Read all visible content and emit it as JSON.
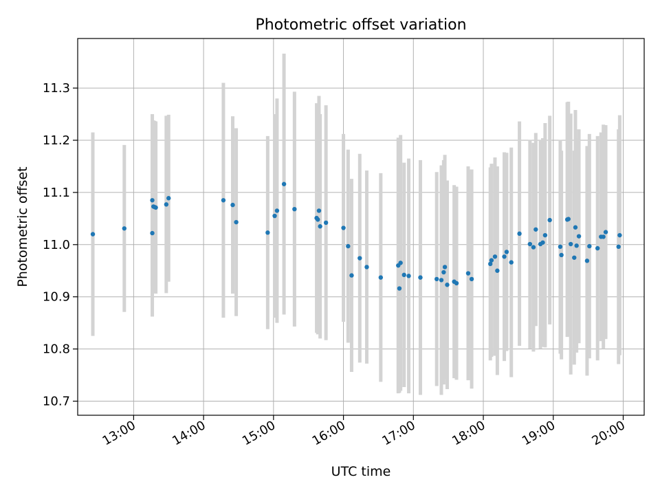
{
  "chart_data": {
    "type": "scatter",
    "title": "Photometric offset variation",
    "xlabel": "UTC time",
    "ylabel": "Photometric offset",
    "x_ticks": [
      "13:00",
      "14:00",
      "15:00",
      "16:00",
      "17:00",
      "18:00",
      "19:00",
      "20:00"
    ],
    "y_ticks": [
      "10.7",
      "10.8",
      "10.9",
      "11.0",
      "11.1",
      "11.2",
      "11.3"
    ],
    "xlim": [
      "12:12",
      "20:18"
    ],
    "ylim": [
      10.673,
      11.395
    ],
    "grid": true,
    "point_color": "#1f77b4",
    "errorbar_color": "#d3d3d3",
    "series": [
      {
        "x": [
          "12:25",
          "12:52",
          "13:16",
          "13:16",
          "13:17",
          "13:18",
          "13:19",
          "13:28",
          "13:30",
          "14:17",
          "14:25",
          "14:28",
          "14:55",
          "15:01",
          "15:03",
          "15:09",
          "15:18",
          "15:37",
          "15:38",
          "15:39",
          "15:40",
          "15:45",
          "16:00",
          "16:04",
          "16:07",
          "16:14",
          "16:20",
          "16:32",
          "16:47",
          "16:48",
          "16:49",
          "16:52",
          "16:56",
          "17:06",
          "17:20",
          "17:24",
          "17:26",
          "17:27",
          "17:29",
          "17:35",
          "17:37",
          "17:47",
          "17:50",
          "18:06",
          "18:07",
          "18:10",
          "18:12",
          "18:18",
          "18:20",
          "18:24",
          "18:31",
          "18:40",
          "18:43",
          "18:45",
          "18:49",
          "18:51",
          "18:53",
          "18:57",
          "19:06",
          "19:07",
          "19:12",
          "19:13",
          "19:15",
          "19:18",
          "19:19",
          "19:20",
          "19:22",
          "19:29",
          "19:31",
          "19:38",
          "19:41",
          "19:43",
          "19:45",
          "19:56",
          "19:57"
        ],
        "y": [
          11.02,
          11.031,
          11.022,
          11.085,
          11.073,
          11.072,
          11.071,
          11.077,
          11.089,
          11.085,
          11.076,
          11.043,
          11.023,
          11.055,
          11.065,
          11.116,
          11.068,
          11.051,
          11.048,
          11.065,
          11.035,
          11.042,
          11.032,
          10.997,
          10.941,
          10.974,
          10.957,
          10.937,
          10.96,
          10.916,
          10.965,
          10.942,
          10.94,
          10.937,
          10.934,
          10.932,
          10.947,
          10.957,
          10.923,
          10.929,
          10.926,
          10.945,
          10.934,
          10.963,
          10.97,
          10.977,
          10.95,
          10.977,
          10.986,
          10.966,
          11.021,
          11.001,
          10.995,
          11.029,
          11.001,
          11.004,
          11.018,
          11.047,
          10.996,
          10.98,
          11.048,
          11.049,
          11.001,
          10.975,
          11.033,
          10.998,
          11.016,
          10.969,
          10.997,
          10.993,
          11.015,
          11.015,
          11.024,
          10.996,
          11.018
        ],
        "err": [
          0.195,
          0.16,
          0.16,
          0.165,
          0.165,
          0.165,
          0.165,
          0.17,
          0.16,
          0.225,
          0.17,
          0.18,
          0.185,
          0.195,
          0.215,
          0.25,
          0.225,
          0.22,
          0.22,
          0.22,
          0.215,
          0.225,
          0.18,
          0.185,
          0.185,
          0.2,
          0.185,
          0.2,
          0.245,
          0.2,
          0.245,
          0.215,
          0.225,
          0.225,
          0.205,
          0.22,
          0.215,
          0.215,
          0.2,
          0.185,
          0.185,
          0.205,
          0.21,
          0.185,
          0.185,
          0.19,
          0.2,
          0.2,
          0.19,
          0.22,
          0.215,
          0.2,
          0.2,
          0.185,
          0.2,
          0.2,
          0.215,
          0.2,
          0.205,
          0.2,
          0.225,
          0.225,
          0.25,
          0.205,
          0.225,
          0.205,
          0.205,
          0.22,
          0.215,
          0.215,
          0.2,
          0.215,
          0.205,
          0.225,
          0.23
        ]
      }
    ]
  }
}
